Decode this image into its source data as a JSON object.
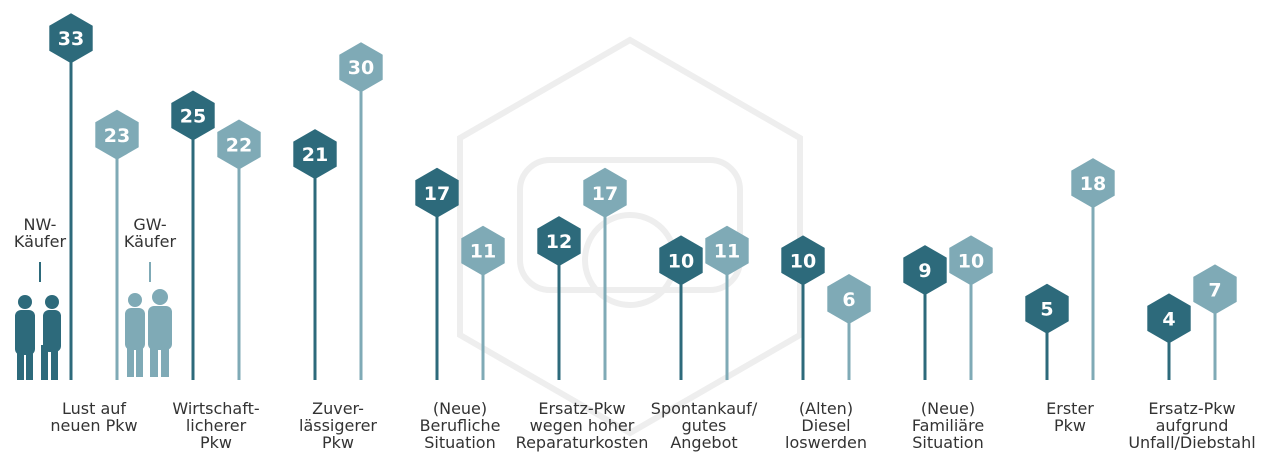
{
  "chart_data": {
    "type": "lollipop",
    "categories": [
      "Lust auf\nneuen Pkw",
      "Wirtschaft-\nlicherer\nPkw",
      "Zuver-\nlässigerer\nPkw",
      "(Neue)\nBerufliche\nSituation",
      "Ersatz-Pkw\nwegen hoher\nReparaturkosten",
      "Spontankauf/\ngutes\nAngebot",
      "(Alten)\nDiesel\nloswerden",
      "(Neue)\nFamiliäre\nSituation",
      "Erster\nPkw",
      "Ersatz-Pkw\naufgrund\nUnfall/Diebstahl"
    ],
    "series": [
      {
        "name": "NW-\nKäufer",
        "color": "#2d6a7b",
        "values": [
          33,
          25,
          21,
          17,
          12,
          10,
          10,
          9,
          5,
          4
        ]
      },
      {
        "name": "GW-\nKäufer",
        "color": "#7faab6",
        "values": [
          23,
          22,
          30,
          11,
          17,
          11,
          6,
          10,
          18,
          7
        ]
      }
    ]
  }
}
